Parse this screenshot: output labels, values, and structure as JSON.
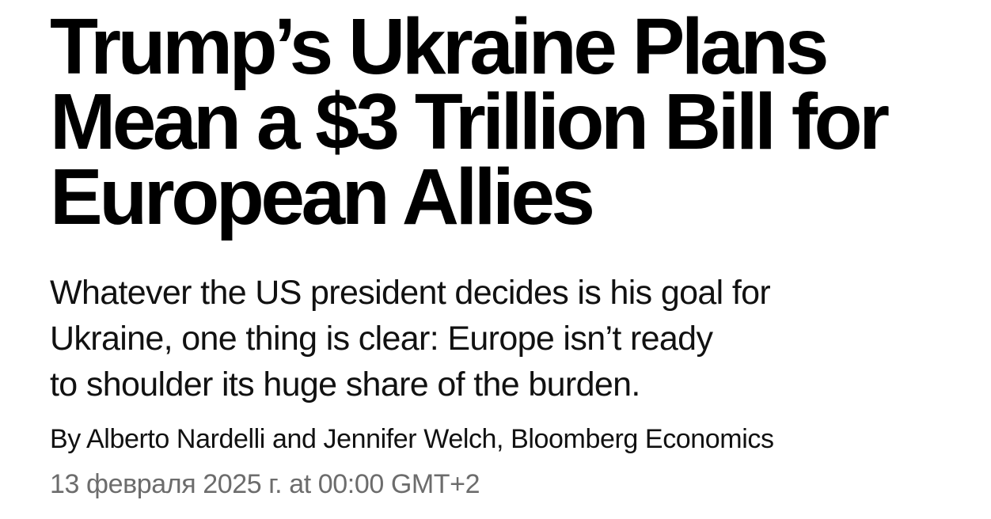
{
  "article": {
    "headline_full": "Trump’s Ukraine Plans Mean a $3 Trillion Bill for European Allies",
    "headline_lines": [
      "Trump’s Ukraine Plans",
      "Mean a $3 Trillion Bill for",
      "European Allies"
    ],
    "dek_full": "Whatever the US president decides is his goal for Ukraine, one thing is clear: Europe isn’t ready to shoulder its huge share of the burden.",
    "dek_lines": [
      "Whatever the US president decides is his goal for",
      "Ukraine, one thing is clear: Europe isn’t ready",
      "to shoulder its huge share of the burden."
    ],
    "byline": "By Alberto Nardelli and Jennifer Welch, Bloomberg Economics",
    "date": "13 февраля 2025 г. at 00:00 GMT+2",
    "colors": {
      "headline": "#000000",
      "dek": "#111111",
      "byline": "#111111",
      "date": "#6c6c6c",
      "background": "#ffffff"
    }
  }
}
